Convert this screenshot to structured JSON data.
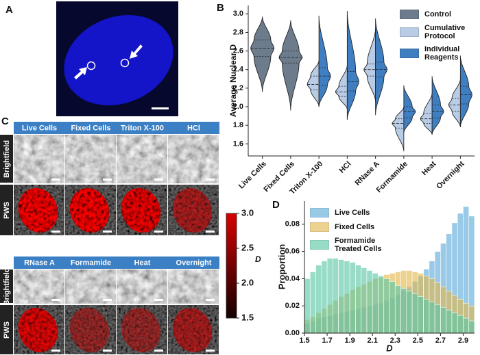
{
  "panel_labels": {
    "a": "A",
    "b": "B",
    "c": "C",
    "d": "D"
  },
  "image_grid": {
    "row_labels": [
      "Brightfield",
      "PWS"
    ],
    "top_columns": [
      "Live Cells",
      "Fixed Cells",
      "Triton X-100",
      "HCl"
    ],
    "bottom_columns": [
      "RNase A",
      "Formamide",
      "Heat",
      "Overnight"
    ]
  },
  "chart_data": [
    {
      "type": "violin",
      "ylabel": "Average Nuclear D",
      "categories": [
        "Live Cells",
        "Fixed Cells",
        "Triton X-100",
        "HCl",
        "RNase A",
        "Formamide",
        "Heat",
        "Overnight"
      ],
      "ylim": [
        1.47,
        3.09
      ],
      "yticks": [
        1.6,
        1.8,
        {
          "value": 2.0,
          "label": "2.0"
        },
        2.2,
        2.4,
        2.6,
        2.8,
        {
          "value": 3.0,
          "label": "3.0"
        }
      ],
      "series": [
        {
          "name": "Control",
          "color": "#6d7c8c",
          "side": "both",
          "min": [
            2.16,
            1.96,
            null,
            null,
            null,
            null,
            null,
            null
          ],
          "q1": [
            2.54,
            2.47,
            null,
            null,
            null,
            null,
            null,
            null
          ],
          "median": [
            2.63,
            2.53,
            null,
            null,
            null,
            null,
            null,
            null
          ],
          "q3": [
            2.72,
            2.6,
            null,
            null,
            null,
            null,
            null,
            null
          ],
          "max": [
            2.97,
            2.93,
            null,
            null,
            null,
            null,
            null,
            null
          ]
        },
        {
          "name": "Cumulative Protocol",
          "color": "#b9cce6",
          "side": "left",
          "min": [
            null,
            null,
            2.0,
            1.97,
            2.05,
            1.52,
            1.7,
            1.78
          ],
          "q1": [
            null,
            null,
            2.18,
            2.11,
            2.33,
            1.77,
            1.82,
            1.95
          ],
          "median": [
            null,
            null,
            2.24,
            2.16,
            2.4,
            1.82,
            1.87,
            2.02
          ],
          "q3": [
            null,
            null,
            2.33,
            2.22,
            2.46,
            1.87,
            1.93,
            2.09
          ],
          "max": [
            null,
            null,
            2.5,
            2.45,
            2.85,
            2.0,
            2.15,
            2.3
          ]
        },
        {
          "name": "Individual Reagents",
          "color": "#3f7fc1",
          "side": "right",
          "min": [
            null,
            null,
            2.0,
            1.86,
            1.91,
            1.72,
            1.7,
            1.78
          ],
          "q1": [
            null,
            null,
            2.23,
            2.17,
            2.32,
            1.88,
            1.88,
            2.03
          ],
          "median": [
            null,
            null,
            2.33,
            2.27,
            2.4,
            1.95,
            1.95,
            2.13
          ],
          "q3": [
            null,
            null,
            2.42,
            2.38,
            2.48,
            2.0,
            2.02,
            2.22
          ],
          "max": [
            null,
            null,
            2.98,
            3.03,
            2.95,
            2.23,
            2.33,
            2.55
          ]
        }
      ]
    },
    {
      "type": "colorbar",
      "label": "D",
      "colors": [
        "#140000",
        "#d80000"
      ],
      "ylim": [
        1.5,
        3.0
      ],
      "yticks": [
        {
          "value": 1.5,
          "label": "1.5"
        },
        {
          "value": 2.0,
          "label": "2.0"
        },
        {
          "value": 2.5,
          "label": "2.5"
        },
        {
          "value": 3.0,
          "label": "3.0"
        }
      ]
    },
    {
      "type": "histogram",
      "xlabel": "D",
      "ylabel": "Proportion",
      "bins": [
        1.5,
        1.55,
        1.6,
        1.65,
        1.7,
        1.75,
        1.8,
        1.85,
        1.9,
        1.95,
        2.0,
        2.05,
        2.1,
        2.15,
        2.2,
        2.25,
        2.3,
        2.35,
        2.4,
        2.45,
        2.5,
        2.55,
        2.6,
        2.65,
        2.7,
        2.75,
        2.8,
        2.85,
        2.9,
        2.95,
        3.0
      ],
      "xlim": [
        1.5,
        3.0
      ],
      "ylim": [
        0,
        0.097
      ],
      "xticks": [
        1.5,
        1.7,
        1.9,
        2.1,
        2.3,
        2.5,
        2.7,
        2.9
      ],
      "yticks": [
        {
          "value": 0,
          "label": "0.00"
        },
        {
          "value": 0.02,
          "label": "0.02"
        },
        {
          "value": 0.04,
          "label": "0.04"
        },
        {
          "value": 0.06,
          "label": "0.06"
        },
        {
          "value": 0.08,
          "label": "0.08"
        }
      ],
      "series": [
        {
          "name": "Live Cells",
          "color": "#5aa9d8",
          "values": [
            0.007,
            0.009,
            0.011,
            0.012,
            0.013,
            0.014,
            0.015,
            0.016,
            0.017,
            0.018,
            0.019,
            0.02,
            0.021,
            0.022,
            0.024,
            0.026,
            0.028,
            0.031,
            0.034,
            0.038,
            0.042,
            0.047,
            0.053,
            0.06,
            0.066,
            0.073,
            0.081,
            0.088,
            0.093,
            0.086
          ]
        },
        {
          "name": "Fixed Cells",
          "color": "#e2b64c",
          "values": [
            0.01,
            0.012,
            0.015,
            0.018,
            0.021,
            0.024,
            0.027,
            0.029,
            0.032,
            0.034,
            0.036,
            0.038,
            0.04,
            0.041,
            0.043,
            0.044,
            0.045,
            0.046,
            0.046,
            0.045,
            0.044,
            0.042,
            0.04,
            0.037,
            0.034,
            0.031,
            0.028,
            0.025,
            0.022,
            0.02
          ]
        },
        {
          "name": "Formamide Treated Cells",
          "color": "#58c7a4",
          "values": [
            0.04,
            0.045,
            0.05,
            0.053,
            0.055,
            0.055,
            0.054,
            0.053,
            0.052,
            0.05,
            0.048,
            0.046,
            0.044,
            0.042,
            0.04,
            0.038,
            0.035,
            0.033,
            0.031,
            0.029,
            0.027,
            0.025,
            0.023,
            0.021,
            0.019,
            0.017,
            0.015,
            0.013,
            0.011,
            0.009
          ]
        }
      ]
    }
  ]
}
